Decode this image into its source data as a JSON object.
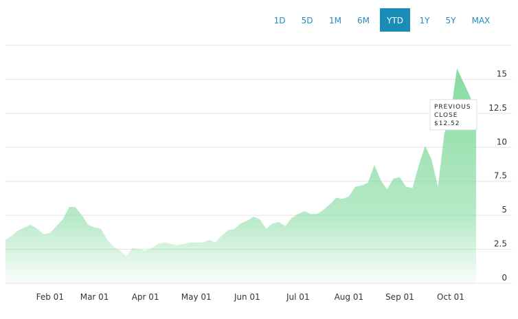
{
  "range_buttons": [
    "1D",
    "5D",
    "1M",
    "6M",
    "YTD",
    "1Y",
    "5Y",
    "MAX"
  ],
  "active_range": "YTD",
  "chart_data": {
    "type": "area",
    "x": [
      "Jan 04",
      "Jan 08",
      "Jan 12",
      "Jan 16",
      "Jan 20",
      "Jan 24",
      "Jan 28",
      "Feb 01",
      "Feb 05",
      "Feb 09",
      "Feb 13",
      "Feb 17",
      "Feb 21",
      "Feb 25",
      "Mar 01",
      "Mar 05",
      "Mar 09",
      "Mar 13",
      "Mar 17",
      "Mar 21",
      "Mar 25",
      "Mar 29",
      "Apr 01",
      "Apr 05",
      "Apr 09",
      "Apr 13",
      "Apr 17",
      "Apr 21",
      "Apr 25",
      "Apr 29",
      "May 01",
      "May 05",
      "May 09",
      "May 13",
      "May 17",
      "May 21",
      "May 25",
      "May 29",
      "Jun 01",
      "Jun 05",
      "Jun 09",
      "Jun 13",
      "Jun 17",
      "Jun 21",
      "Jun 25",
      "Jun 29",
      "Jul 01",
      "Jul 05",
      "Jul 09",
      "Jul 13",
      "Jul 17",
      "Jul 21",
      "Jul 25",
      "Jul 29",
      "Aug 01",
      "Aug 05",
      "Aug 09",
      "Aug 13",
      "Aug 17",
      "Aug 21",
      "Aug 25",
      "Aug 29",
      "Sep 01",
      "Sep 05",
      "Sep 09",
      "Sep 13",
      "Sep 17",
      "Sep 21",
      "Sep 25",
      "Sep 29",
      "Oct 01",
      "Oct 05",
      "Oct 09",
      "Oct 13",
      "Oct 17"
    ],
    "values": [
      3.2,
      3.5,
      3.9,
      4.1,
      4.3,
      4.0,
      3.6,
      3.7,
      4.2,
      4.7,
      5.6,
      5.6,
      5.0,
      4.3,
      4.1,
      4.0,
      3.2,
      2.7,
      2.4,
      2.0,
      2.6,
      2.5,
      2.4,
      2.6,
      2.9,
      3.0,
      2.9,
      2.8,
      2.9,
      3.0,
      3.0,
      3.0,
      3.2,
      3.0,
      3.5,
      3.9,
      4.0,
      4.4,
      4.6,
      4.9,
      4.7,
      4.0,
      4.4,
      4.5,
      4.2,
      4.8,
      5.1,
      5.3,
      5.1,
      5.1,
      5.4,
      5.8,
      6.3,
      6.2,
      6.4,
      7.1,
      7.2,
      7.4,
      8.7,
      7.6,
      6.9,
      7.7,
      7.8,
      7.1,
      7.0,
      8.7,
      10.1,
      9.1,
      7.1,
      11.0,
      12.5,
      15.8,
      14.8,
      13.8,
      12.5
    ],
    "color": "#7fd99b",
    "xticks": [
      "Feb 01",
      "Mar 01",
      "Apr 01",
      "May 01",
      "Jun 01",
      "Jul 01",
      "Aug 01",
      "Sep 01",
      "Oct 01"
    ],
    "ylim": [
      0,
      17.5
    ],
    "yticks": [
      0,
      2.5,
      5,
      7.5,
      10,
      12.5,
      15
    ],
    "grid": true,
    "annotation": [
      "PREVIOUS",
      "CLOSE",
      "$12.52"
    ]
  }
}
